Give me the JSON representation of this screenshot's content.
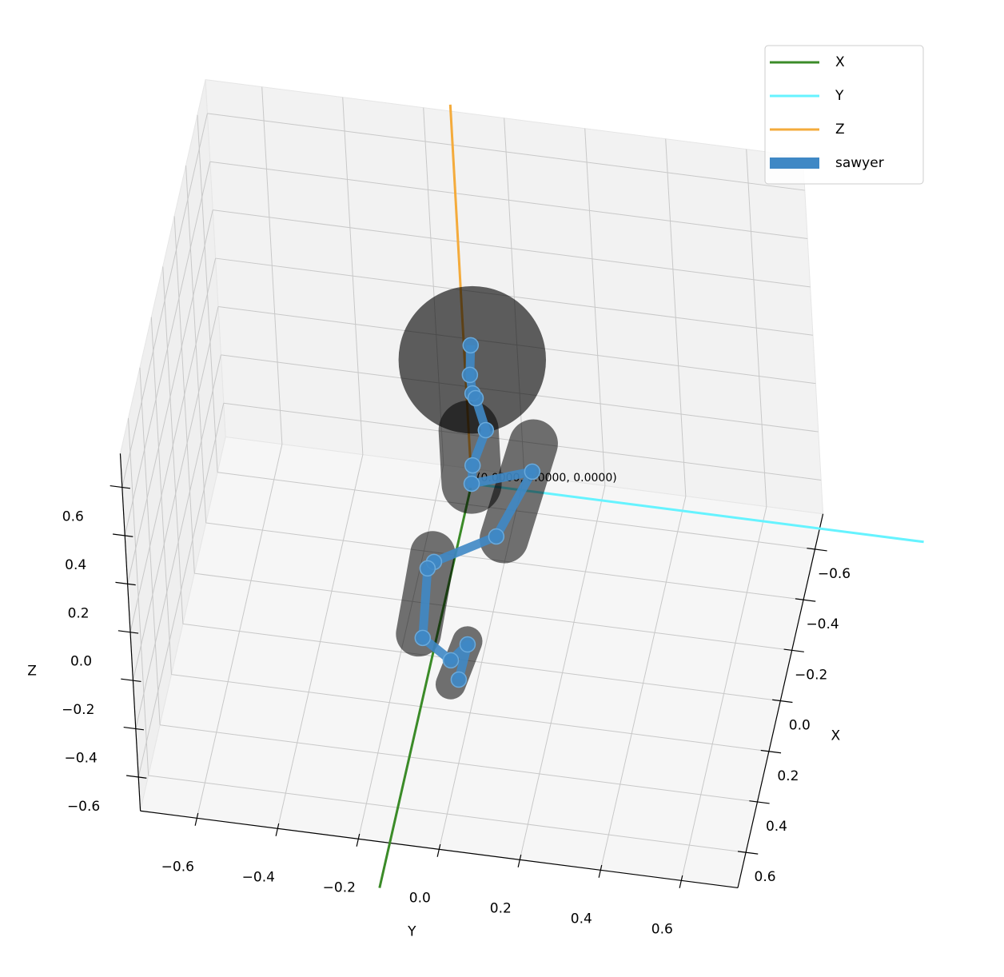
{
  "chart_data": {
    "type": "3d",
    "xlabel": "X",
    "ylabel": "Y",
    "zlabel": "Z",
    "xlim": [
      -0.74,
      0.74
    ],
    "ylim": [
      -0.74,
      0.74
    ],
    "zlim": [
      -0.74,
      0.74
    ],
    "xticks": [
      {
        "value": -0.6,
        "label": "−0.6"
      },
      {
        "value": -0.4,
        "label": "−0.4"
      },
      {
        "value": -0.2,
        "label": "−0.2"
      },
      {
        "value": 0,
        "label": "0.0"
      },
      {
        "value": 0.2,
        "label": "0.2"
      },
      {
        "value": 0.4,
        "label": "0.4"
      },
      {
        "value": 0.6,
        "label": "0.6"
      }
    ],
    "yticks": [
      {
        "value": -0.6,
        "label": "−0.6"
      },
      {
        "value": -0.4,
        "label": "−0.4"
      },
      {
        "value": -0.2,
        "label": "−0.2"
      },
      {
        "value": 0,
        "label": "0.0"
      },
      {
        "value": 0.2,
        "label": "0.2"
      },
      {
        "value": 0.4,
        "label": "0.4"
      },
      {
        "value": 0.6,
        "label": "0.6"
      }
    ],
    "zticks": [
      {
        "value": -0.6,
        "label": "−0.6"
      },
      {
        "value": -0.4,
        "label": "−0.4"
      },
      {
        "value": -0.2,
        "label": "−0.2"
      },
      {
        "value": 0,
        "label": "0.0"
      },
      {
        "value": 0.2,
        "label": "0.2"
      },
      {
        "value": 0.4,
        "label": "0.4"
      },
      {
        "value": 0.6,
        "label": "0.6"
      }
    ],
    "grid": true,
    "legend": "upper right",
    "annotation": {
      "text": "(0.0000, 0.0000, 0.0000)",
      "x": 0,
      "y": 0,
      "z": 0
    },
    "series": [
      {
        "name": "X",
        "color": "#3b8b28",
        "x": [
          0,
          1.6
        ],
        "y": [
          0,
          0
        ],
        "z": [
          0,
          0
        ]
      },
      {
        "name": "Y",
        "color": "#66f3ff",
        "x": [
          0,
          0
        ],
        "y": [
          0,
          1.12
        ],
        "z": [
          0,
          0
        ]
      },
      {
        "name": "Z",
        "color": "#f4ab3c",
        "x": [
          0,
          0
        ],
        "y": [
          0,
          0
        ],
        "z": [
          0,
          1.57
        ]
      },
      {
        "name": "sawyer",
        "color": "#3f88c5",
        "x": [
          0,
          0,
          0,
          0,
          0,
          0,
          0,
          0,
          0.15,
          0.15,
          0.2,
          0.3,
          0.4,
          0.35,
          0.45
        ],
        "y": [
          0.017,
          0.011,
          0.015,
          0.022,
          0.043,
          0.005,
          0,
          0.153,
          0.081,
          -0.078,
          -0.086,
          -0.09,
          -0.005,
          0.03,
          0.021
        ],
        "z": [
          0.577,
          0.453,
          0.377,
          0.359,
          0.231,
          0.077,
          0,
          0.083,
          -0.044,
          -0.184,
          -0.16,
          -0.344,
          -0.314,
          -0.293,
          -0.336
        ]
      }
    ],
    "sphere": {
      "center": [
        0,
        0.019,
        0.517
      ],
      "radius": 0.29
    },
    "links": [
      {
        "start": [
          0,
          0,
          0
        ],
        "end": [
          0,
          0,
          0.22
        ],
        "radius": 0.08
      },
      {
        "start": [
          0,
          0.16,
          0.2
        ],
        "end": [
          0.15,
          0.1,
          -0.05
        ],
        "radius": 0.065
      },
      {
        "start": [
          0.15,
          -0.08,
          -0.15
        ],
        "end": [
          0.3,
          -0.1,
          -0.33
        ],
        "radius": 0.06
      },
      {
        "start": [
          0.35,
          0.03,
          -0.28
        ],
        "end": [
          0.45,
          0,
          -0.36
        ],
        "radius": 0.04
      }
    ]
  }
}
